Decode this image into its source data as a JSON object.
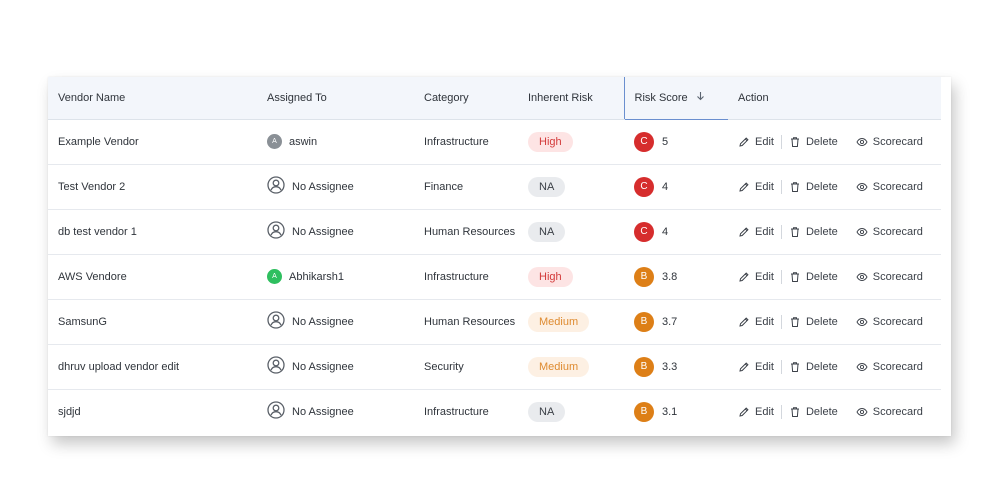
{
  "table": {
    "headers": {
      "vendor_name": "Vendor Name",
      "assigned_to": "Assigned To",
      "category": "Category",
      "inherent_risk": "Inherent Risk",
      "risk_score": "Risk Score",
      "action": "Action"
    },
    "sort_icon": "arrow-down-icon",
    "action_labels": {
      "edit": "Edit",
      "delete": "Delete",
      "scorecard": "Scorecard"
    },
    "rows": [
      {
        "vendor": "Example Vendor",
        "assignee": "aswin",
        "assignee_initial": "A",
        "assignee_color": "#8a9096",
        "category": "Infrastructure",
        "risk": "High",
        "grade": "C",
        "score": "5"
      },
      {
        "vendor": "Test Vendor 2",
        "assignee": "No Assignee",
        "assignee_initial": "",
        "assignee_color": "",
        "category": "Finance",
        "risk": "NA",
        "grade": "C",
        "score": "4"
      },
      {
        "vendor": "db test vendor 1",
        "assignee": "No Assignee",
        "assignee_initial": "",
        "assignee_color": "",
        "category": "Human Resources",
        "risk": "NA",
        "grade": "C",
        "score": "4"
      },
      {
        "vendor": "AWS Vendore",
        "assignee": "Abhikarsh1",
        "assignee_initial": "A",
        "assignee_color": "#2fbf5f",
        "category": "Infrastructure",
        "risk": "High",
        "grade": "B",
        "score": "3.8"
      },
      {
        "vendor": "SamsunG",
        "assignee": "No Assignee",
        "assignee_initial": "",
        "assignee_color": "",
        "category": "Human Resources",
        "risk": "Medium",
        "grade": "B",
        "score": "3.7"
      },
      {
        "vendor": "dhruv upload vendor edit",
        "assignee": "No Assignee",
        "assignee_initial": "",
        "assignee_color": "",
        "category": "Security",
        "risk": "Medium",
        "grade": "B",
        "score": "3.3"
      },
      {
        "vendor": "sjdjd",
        "assignee": "No Assignee",
        "assignee_initial": "",
        "assignee_color": "",
        "category": "Infrastructure",
        "risk": "NA",
        "grade": "B",
        "score": "3.1"
      }
    ]
  },
  "colors": {
    "risk": {
      "High": {
        "bg": "#fde4e4",
        "fg": "#d33a3a"
      },
      "Medium": {
        "bg": "#fdf0e3",
        "fg": "#de8a2f"
      },
      "NA": {
        "bg": "#e9ebee",
        "fg": "#3a3f46"
      }
    },
    "grade": {
      "C": "#d62d2d",
      "B": "#dd7f17"
    }
  }
}
